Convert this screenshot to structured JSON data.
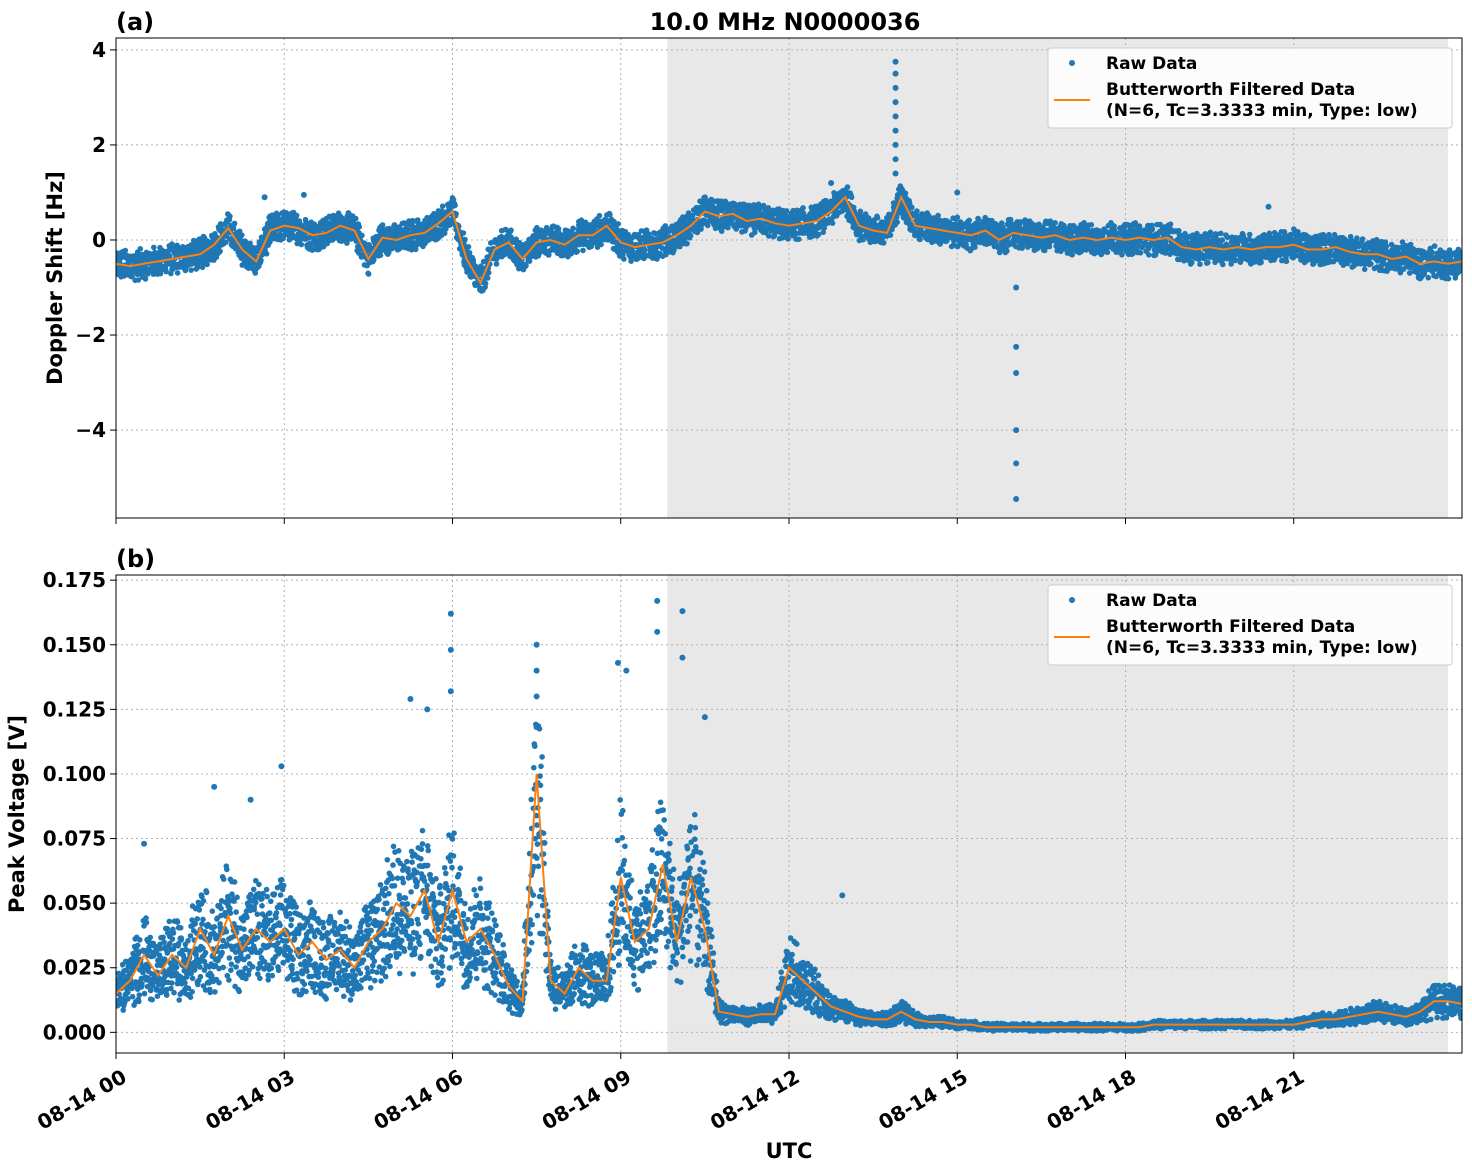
{
  "figure": {
    "title": "10.0 MHz N0000036",
    "xlabel": "UTC",
    "x_ticks": [
      "08-14 00",
      "08-14 03",
      "08-14 06",
      "08-14 09",
      "08-14 12",
      "08-14 15",
      "08-14 18",
      "08-14 21"
    ],
    "x_range_hours": [
      0,
      24
    ],
    "shaded_region_hours": [
      9.83,
      23.75
    ],
    "colors": {
      "raw": "#1f77b4",
      "filtered": "#ff7f0e",
      "shade": "#e8e8e8",
      "grid": "#b0b0b0"
    }
  },
  "legend": {
    "raw_label": "Raw Data",
    "filtered_label_line1": "Butterworth Filtered Data",
    "filtered_label_line2": "(N=6, Tc=3.3333 min, Type: low)"
  },
  "chart_data": [
    {
      "type": "scatter+line",
      "panel_label": "(a)",
      "ylabel": "Doppler Shift [Hz]",
      "ylim": [
        -5.85,
        4.25
      ],
      "y_ticks": [
        4,
        2,
        0,
        -2,
        -4
      ],
      "y_tick_labels": [
        "4",
        "2",
        "0",
        "−2",
        "−4"
      ],
      "legend_position": "top-right",
      "grid": true,
      "filtered": {
        "x": [
          0,
          0.25,
          0.5,
          0.75,
          1,
          1.25,
          1.5,
          1.75,
          2,
          2.25,
          2.5,
          2.75,
          3,
          3.25,
          3.5,
          3.75,
          4,
          4.25,
          4.5,
          4.75,
          5,
          5.25,
          5.5,
          5.75,
          6,
          6.25,
          6.5,
          6.75,
          7,
          7.25,
          7.5,
          7.75,
          8,
          8.25,
          8.5,
          8.75,
          9,
          9.25,
          9.5,
          9.75,
          10,
          10.25,
          10.5,
          10.75,
          11,
          11.25,
          11.5,
          11.75,
          12,
          12.25,
          12.5,
          12.75,
          13,
          13.25,
          13.5,
          13.75,
          14,
          14.25,
          14.5,
          14.75,
          15,
          15.25,
          15.5,
          15.75,
          16,
          16.25,
          16.5,
          16.75,
          17,
          17.25,
          17.5,
          17.75,
          18,
          18.25,
          18.5,
          18.75,
          19,
          19.25,
          19.5,
          19.75,
          20,
          20.25,
          20.5,
          20.75,
          21,
          21.25,
          21.5,
          21.75,
          22,
          22.25,
          22.5,
          22.75,
          23,
          23.25,
          23.5,
          23.75,
          24
        ],
        "y": [
          -0.5,
          -0.55,
          -0.5,
          -0.45,
          -0.4,
          -0.35,
          -0.3,
          -0.1,
          0.25,
          -0.2,
          -0.45,
          0.2,
          0.3,
          0.25,
          0.1,
          0.15,
          0.3,
          0.2,
          -0.4,
          0.05,
          0.0,
          0.1,
          0.15,
          0.35,
          0.6,
          -0.4,
          -0.9,
          -0.2,
          -0.05,
          -0.4,
          -0.05,
          0.0,
          -0.1,
          0.1,
          0.1,
          0.3,
          -0.05,
          -0.15,
          -0.1,
          -0.05,
          0.1,
          0.3,
          0.6,
          0.5,
          0.55,
          0.4,
          0.45,
          0.35,
          0.3,
          0.35,
          0.4,
          0.6,
          0.9,
          0.3,
          0.2,
          0.15,
          0.9,
          0.3,
          0.25,
          0.2,
          0.15,
          0.1,
          0.2,
          0.0,
          0.15,
          0.1,
          0.05,
          0.1,
          0.0,
          0.05,
          0.0,
          0.05,
          0.0,
          0.05,
          0.0,
          0.05,
          -0.15,
          -0.2,
          -0.15,
          -0.2,
          -0.15,
          -0.2,
          -0.15,
          -0.15,
          -0.1,
          -0.2,
          -0.2,
          -0.15,
          -0.25,
          -0.3,
          -0.3,
          -0.4,
          -0.35,
          -0.5,
          -0.45,
          -0.5,
          -0.45
        ]
      },
      "raw_band_half_width": 0.33,
      "raw_outliers": [
        {
          "x": 13.9,
          "y": 3.75
        },
        {
          "x": 13.9,
          "y": 3.5
        },
        {
          "x": 13.9,
          "y": 3.2
        },
        {
          "x": 13.9,
          "y": 2.9
        },
        {
          "x": 13.9,
          "y": 2.6
        },
        {
          "x": 13.9,
          "y": 2.3
        },
        {
          "x": 13.9,
          "y": 2.0
        },
        {
          "x": 13.9,
          "y": 1.7
        },
        {
          "x": 13.9,
          "y": 1.4
        },
        {
          "x": 16.05,
          "y": -1.0
        },
        {
          "x": 16.05,
          "y": -2.25
        },
        {
          "x": 16.05,
          "y": -2.8
        },
        {
          "x": 16.05,
          "y": -4.0
        },
        {
          "x": 16.05,
          "y": -4.7
        },
        {
          "x": 16.05,
          "y": -5.45
        },
        {
          "x": 12.75,
          "y": 1.2
        },
        {
          "x": 15.0,
          "y": 1.0
        },
        {
          "x": 20.55,
          "y": 0.7
        },
        {
          "x": 2.65,
          "y": 0.9
        },
        {
          "x": 3.35,
          "y": 0.95
        }
      ]
    },
    {
      "type": "scatter+line",
      "panel_label": "(b)",
      "ylabel": "Peak Voltage [V]",
      "ylim": [
        -0.008,
        0.177
      ],
      "y_ticks": [
        0.175,
        0.15,
        0.125,
        0.1,
        0.075,
        0.05,
        0.025,
        0.0
      ],
      "y_tick_labels": [
        "0.175",
        "0.150",
        "0.125",
        "0.100",
        "0.075",
        "0.050",
        "0.025",
        "0.000"
      ],
      "legend_position": "top-right",
      "grid": true,
      "filtered": {
        "x": [
          0,
          0.25,
          0.5,
          0.75,
          1,
          1.25,
          1.5,
          1.75,
          2,
          2.25,
          2.5,
          2.75,
          3,
          3.25,
          3.5,
          3.75,
          4,
          4.25,
          4.5,
          4.75,
          5,
          5.25,
          5.5,
          5.75,
          6,
          6.25,
          6.5,
          6.75,
          7,
          7.25,
          7.5,
          7.75,
          8,
          8.25,
          8.5,
          8.75,
          9,
          9.25,
          9.5,
          9.75,
          10,
          10.25,
          10.5,
          10.75,
          11,
          11.25,
          11.5,
          11.75,
          12,
          12.25,
          12.5,
          12.75,
          13,
          13.25,
          13.5,
          13.75,
          14,
          14.25,
          14.5,
          14.75,
          15,
          15.25,
          15.5,
          15.75,
          16,
          16.25,
          16.5,
          16.75,
          17,
          17.25,
          17.5,
          17.75,
          18,
          18.25,
          18.5,
          18.75,
          19,
          19.25,
          19.5,
          19.75,
          20,
          20.25,
          20.5,
          20.75,
          21,
          21.25,
          21.5,
          21.75,
          22,
          22.25,
          22.5,
          22.75,
          23,
          23.25,
          23.5,
          23.75,
          24
        ],
        "y": [
          0.015,
          0.02,
          0.03,
          0.022,
          0.03,
          0.025,
          0.04,
          0.03,
          0.045,
          0.032,
          0.04,
          0.035,
          0.04,
          0.03,
          0.035,
          0.028,
          0.032,
          0.025,
          0.035,
          0.04,
          0.05,
          0.045,
          0.055,
          0.035,
          0.055,
          0.035,
          0.04,
          0.03,
          0.018,
          0.012,
          0.1,
          0.02,
          0.015,
          0.025,
          0.02,
          0.02,
          0.06,
          0.035,
          0.04,
          0.065,
          0.035,
          0.06,
          0.04,
          0.008,
          0.007,
          0.006,
          0.007,
          0.007,
          0.025,
          0.02,
          0.015,
          0.01,
          0.008,
          0.006,
          0.005,
          0.005,
          0.008,
          0.005,
          0.004,
          0.004,
          0.003,
          0.003,
          0.002,
          0.002,
          0.002,
          0.002,
          0.002,
          0.002,
          0.002,
          0.002,
          0.002,
          0.002,
          0.002,
          0.002,
          0.003,
          0.003,
          0.003,
          0.003,
          0.003,
          0.003,
          0.003,
          0.003,
          0.003,
          0.003,
          0.003,
          0.004,
          0.005,
          0.005,
          0.006,
          0.007,
          0.008,
          0.007,
          0.006,
          0.008,
          0.012,
          0.012,
          0.011
        ]
      },
      "raw_band_scale": 0.55,
      "raw_outliers": [
        {
          "x": 5.97,
          "y": 0.162
        },
        {
          "x": 5.97,
          "y": 0.148
        },
        {
          "x": 5.97,
          "y": 0.132
        },
        {
          "x": 7.5,
          "y": 0.15
        },
        {
          "x": 7.5,
          "y": 0.14
        },
        {
          "x": 7.5,
          "y": 0.13
        },
        {
          "x": 9.65,
          "y": 0.167
        },
        {
          "x": 9.65,
          "y": 0.155
        },
        {
          "x": 10.1,
          "y": 0.163
        },
        {
          "x": 10.1,
          "y": 0.145
        },
        {
          "x": 10.5,
          "y": 0.122
        },
        {
          "x": 8.95,
          "y": 0.143
        },
        {
          "x": 9.1,
          "y": 0.14
        },
        {
          "x": 2.95,
          "y": 0.103
        },
        {
          "x": 5.25,
          "y": 0.129
        },
        {
          "x": 5.55,
          "y": 0.125
        },
        {
          "x": 1.75,
          "y": 0.095
        },
        {
          "x": 2.4,
          "y": 0.09
        },
        {
          "x": 0.5,
          "y": 0.073
        },
        {
          "x": 12.95,
          "y": 0.053
        }
      ]
    }
  ]
}
